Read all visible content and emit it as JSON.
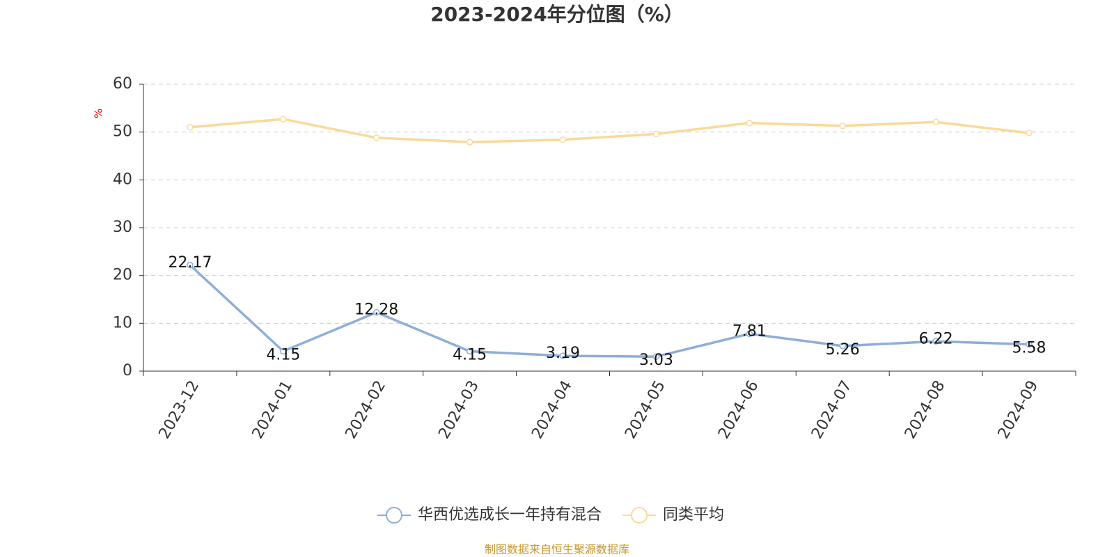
{
  "chart_data": {
    "type": "line",
    "title": "2023-2024年分位图（%）",
    "y_label": "%",
    "source": "制图数据来自恒生聚源数据库",
    "categories": [
      "2023-12",
      "2024-01",
      "2024-02",
      "2024-03",
      "2024-04",
      "2024-05",
      "2024-06",
      "2024-07",
      "2024-08",
      "2024-09"
    ],
    "series": [
      {
        "name": "华西优选成长一年持有混合",
        "color": "#8eaed8",
        "values": [
          22.17,
          4.15,
          12.28,
          4.15,
          3.19,
          3.03,
          7.81,
          5.26,
          6.22,
          5.58
        ],
        "show_labels": true
      },
      {
        "name": "同类平均",
        "color": "#fbd99a",
        "values": [
          51.0,
          52.7,
          48.8,
          47.9,
          48.4,
          49.6,
          51.9,
          51.3,
          52.1,
          49.8
        ],
        "show_labels": false
      }
    ],
    "ylim": [
      0,
      60
    ],
    "yticks": [
      0,
      10,
      20,
      30,
      40,
      50,
      60
    ],
    "grid": true
  }
}
